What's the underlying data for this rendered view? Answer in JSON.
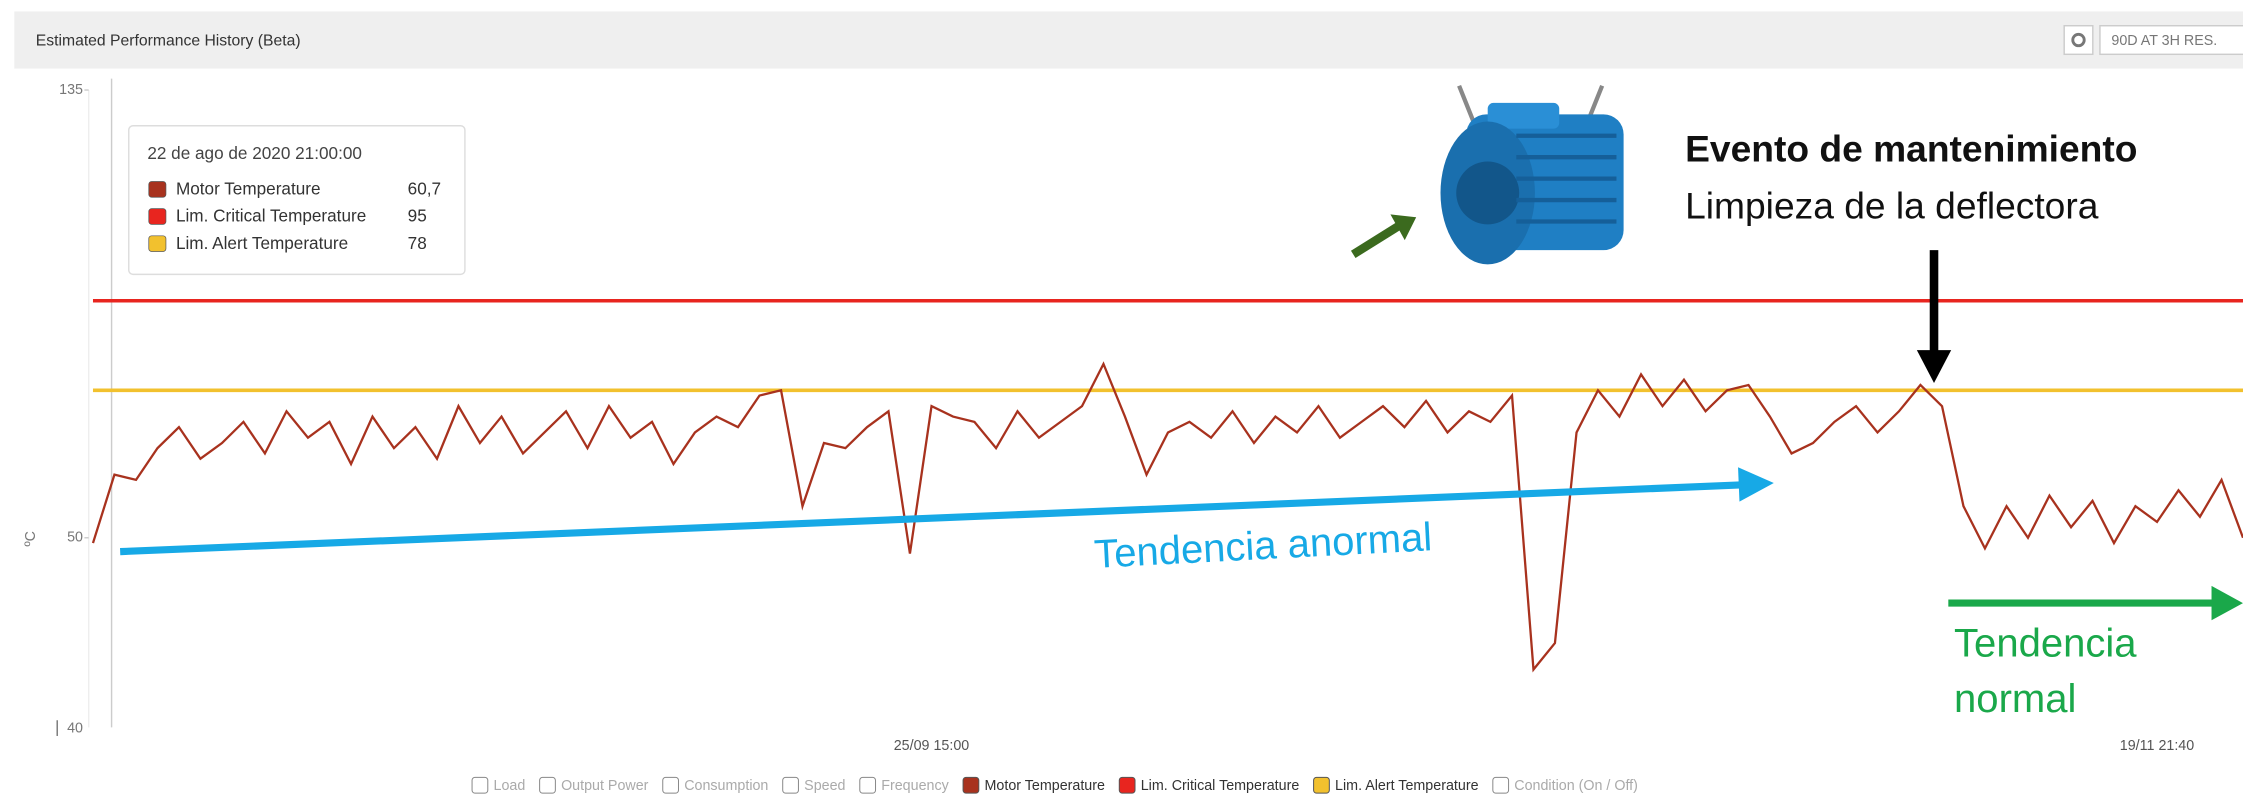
{
  "header": {
    "title": "Estimated Performance History (Beta)",
    "range_button": "90D AT 3H RES."
  },
  "chart_data": {
    "type": "line",
    "y_label": "ºC",
    "ylim": [
      14,
      135
    ],
    "yticks": [
      135,
      50
    ],
    "y_bottom_label": "40",
    "categories": [
      null,
      null,
      null,
      null,
      null,
      null,
      null,
      null,
      null,
      null,
      null,
      null,
      null,
      null,
      null,
      null,
      null,
      null,
      null,
      null,
      null,
      null,
      null,
      null,
      null,
      null,
      null,
      null,
      null,
      null,
      null,
      null,
      null,
      null,
      null,
      null,
      null,
      null,
      null,
      "25/09 15:00",
      null,
      null,
      null,
      null,
      null,
      null,
      null,
      null,
      null,
      null,
      null,
      null,
      null,
      null,
      null,
      null,
      null,
      null,
      null,
      null,
      null,
      null,
      null,
      null,
      null,
      null,
      null,
      null,
      null,
      null,
      null,
      null,
      null,
      null,
      null,
      null,
      null,
      null,
      null,
      null,
      null,
      null,
      null,
      null,
      null,
      null,
      null,
      null,
      null,
      null,
      null,
      null,
      null,
      null,
      null,
      null,
      "19/11 21:40",
      null,
      null,
      null,
      null
    ],
    "series": [
      {
        "name": "Motor Temperature",
        "color": "#a8321e",
        "values": [
          49,
          62,
          61,
          67,
          71,
          65,
          68,
          72,
          66,
          74,
          69,
          72,
          64,
          73,
          67,
          71,
          65,
          75,
          68,
          73,
          66,
          70,
          74,
          67,
          75,
          69,
          72,
          64,
          70,
          73,
          71,
          77,
          78,
          56,
          68,
          67,
          71,
          74,
          47,
          75,
          73,
          72,
          67,
          74,
          69,
          72,
          75,
          83,
          73,
          62,
          70,
          72,
          69,
          74,
          68,
          73,
          70,
          75,
          69,
          72,
          75,
          71,
          76,
          70,
          74,
          72,
          77,
          25,
          30,
          70,
          78,
          73,
          81,
          75,
          80,
          74,
          78,
          79,
          73,
          66,
          68,
          72,
          75,
          70,
          74,
          79,
          75,
          56,
          48,
          56,
          50,
          58,
          52,
          57,
          49,
          56,
          53,
          59,
          54,
          61,
          50
        ]
      }
    ],
    "thresholds": [
      {
        "name": "Lim. Critical Temperature",
        "color": "#e8251f",
        "value": 95
      },
      {
        "name": "Lim. Alert Temperature",
        "color": "#f2c12e",
        "value": 78
      }
    ],
    "tooltip": {
      "title": "22 de ago de 2020 21:00:00",
      "motor_value": {
        "value": 60.7,
        "label": "60,7"
      }
    },
    "inactive_before": [
      "Load",
      "Output Power",
      "Consumption",
      "Speed",
      "Frequency"
    ],
    "inactive_after": [
      "Condition (On / Off)"
    ],
    "annotations": {
      "event_title": "Evento de mantenimiento",
      "event_detail": "Limpieza de la deflectora",
      "abnormal": "Tendencia anormal",
      "normal_line1": "Tendencia",
      "normal_line2": "normal"
    }
  }
}
